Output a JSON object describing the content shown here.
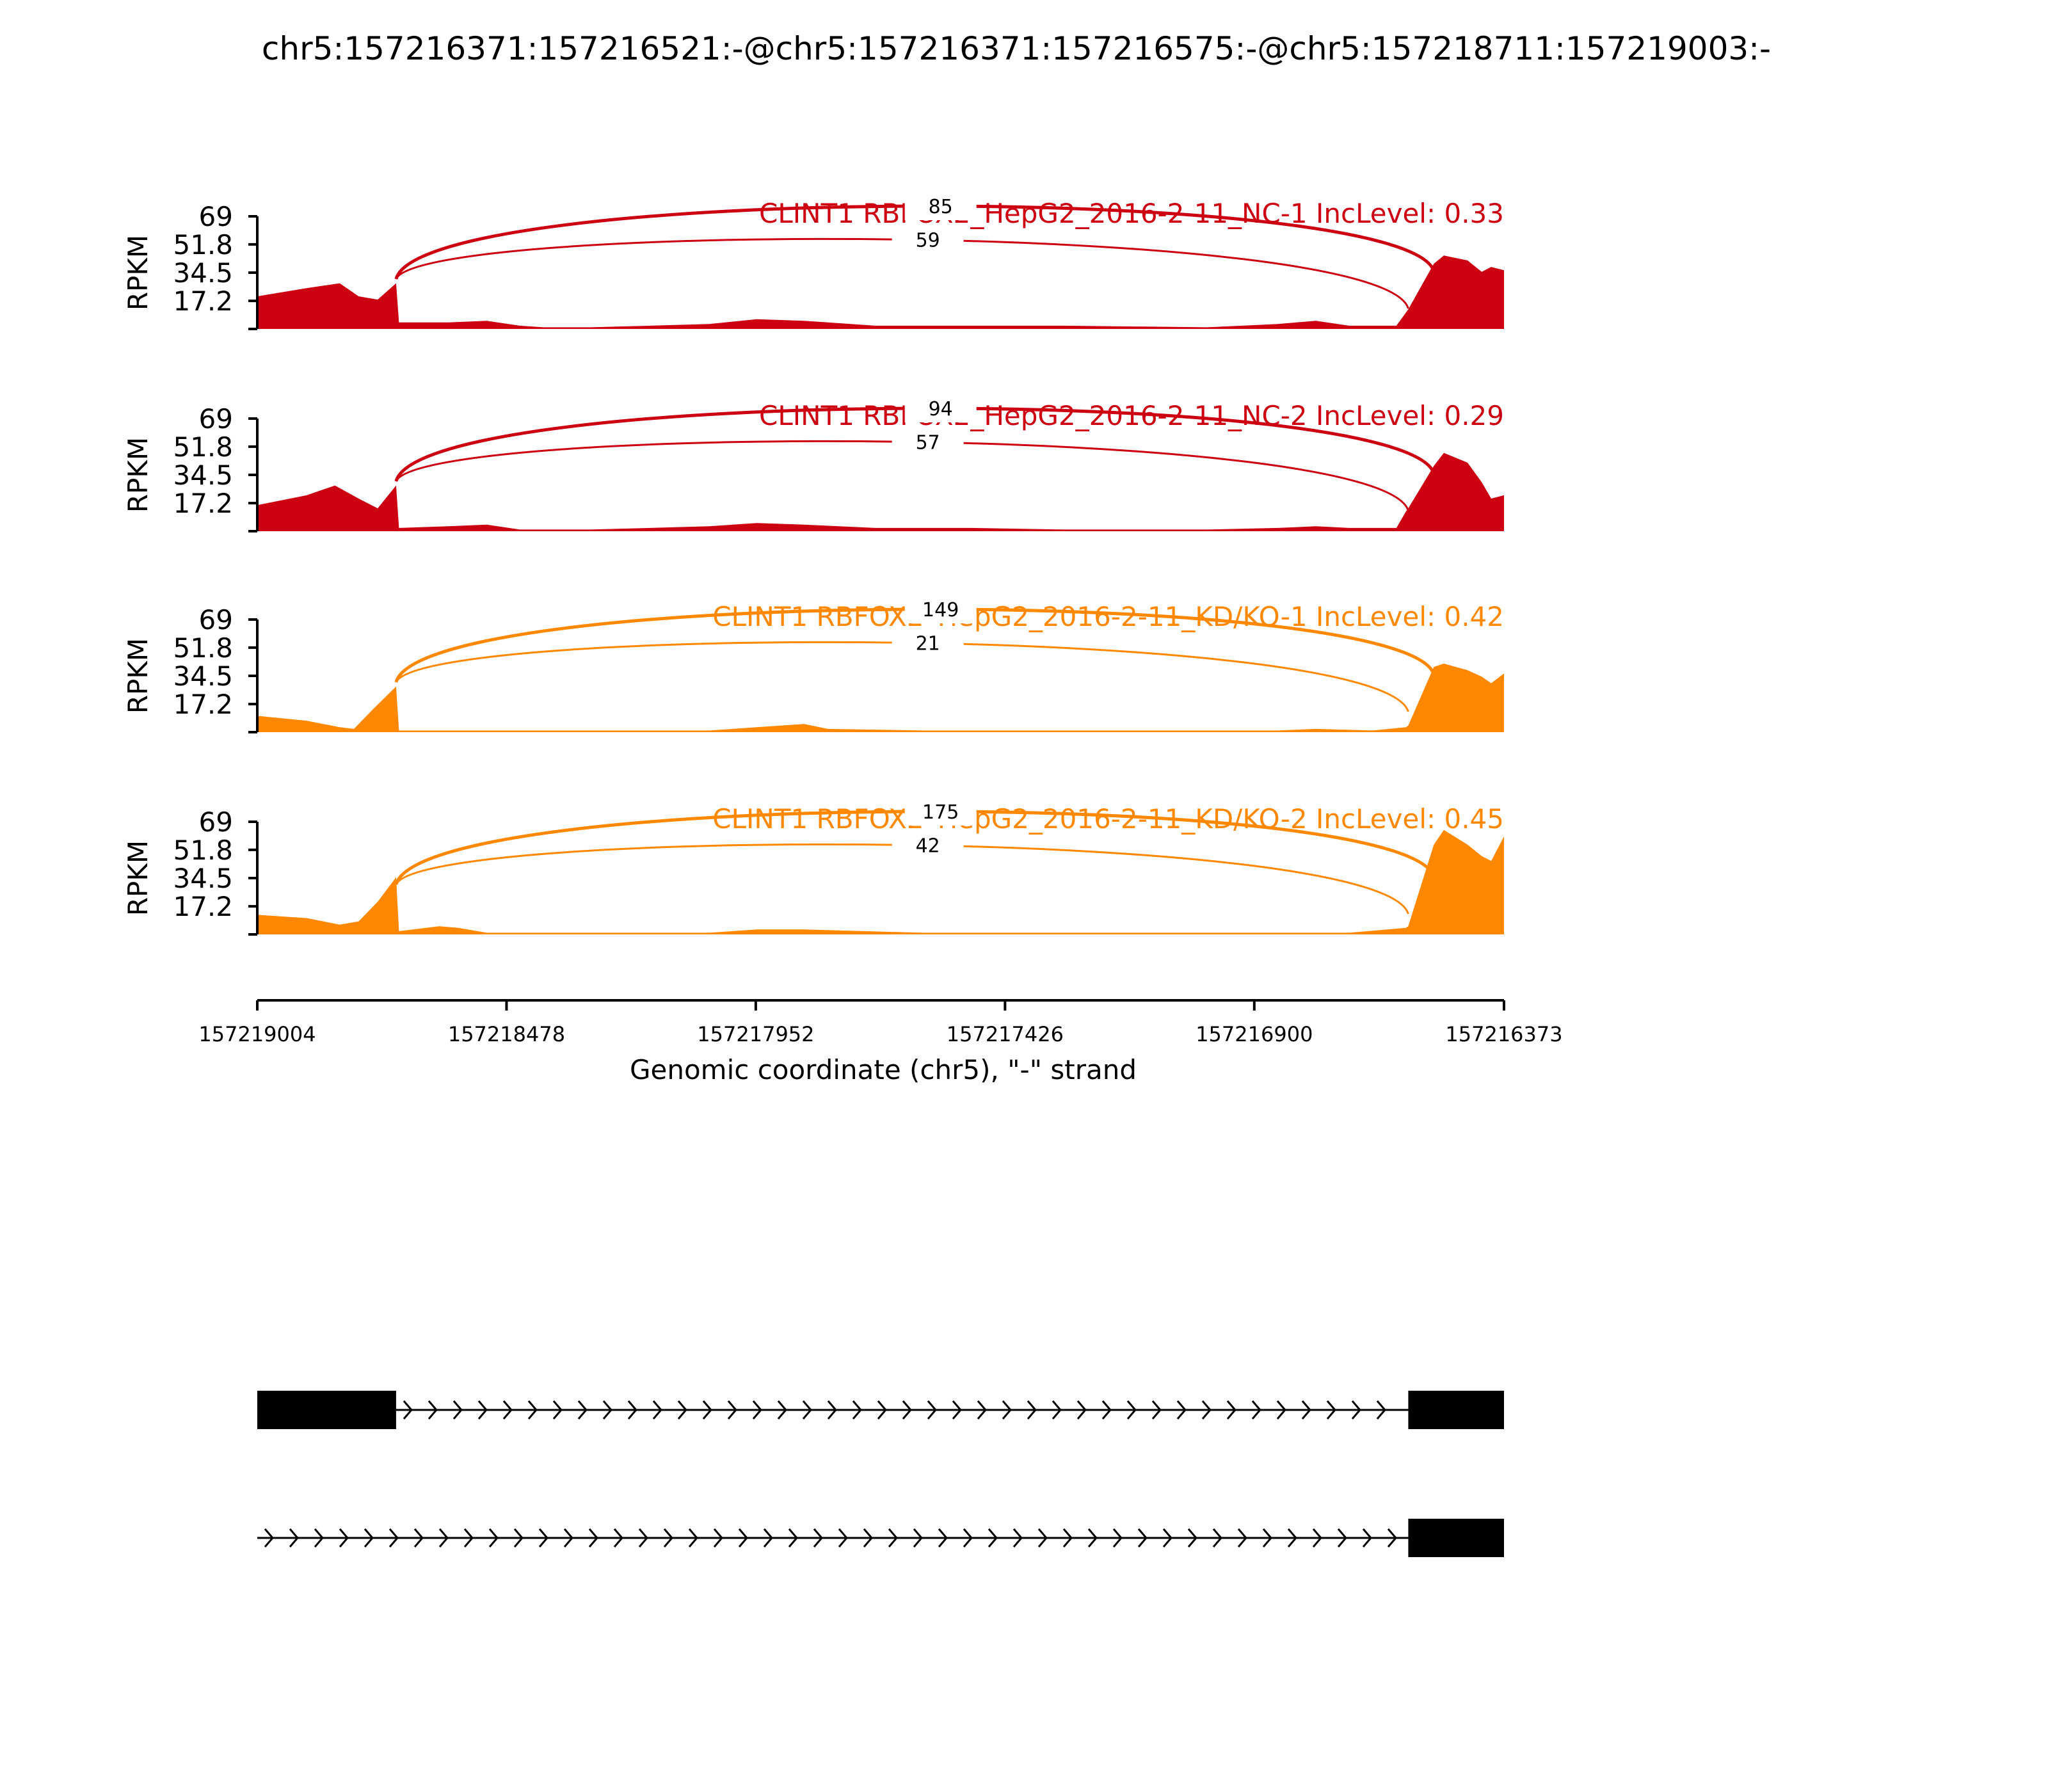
{
  "title": "chr5:157216371:157216521:-@chr5:157216371:157216575:-@chr5:157218711:157219003:-",
  "colors": {
    "nc": "#cc0011",
    "kd": "#ff8800",
    "axis": "#000000",
    "exon": "#000000"
  },
  "chart_data": {
    "type": "area",
    "subtype": "sashimi",
    "ylabel": "RPKM",
    "ylim": [
      0,
      69
    ],
    "yticks": [
      "17.2",
      "34.5",
      "51.8",
      "69"
    ],
    "xlabel": "Genomic coordinate (chr5), \"-\" strand",
    "xlim": [
      157219004,
      157216373
    ],
    "xticks": [
      "157219004",
      "157218478",
      "157217952",
      "157217426",
      "157216900",
      "157216373"
    ],
    "junction_ends": {
      "upstream_exon_end": 157218711,
      "middle_exon_start": 157216575,
      "downstream_exon_start": 157216521
    },
    "tracks": [
      {
        "label": "CLINT1 RBFOX2_HepG2_2016-2-11_NC-1 IncLevel: 0.33",
        "color_key": "nc",
        "junctions": [
          {
            "count": "85",
            "to": 157216521
          },
          {
            "count": "59",
            "to": 157216575
          }
        ],
        "coverage": [
          [
            157219004,
            20
          ],
          [
            157218900,
            25
          ],
          [
            157218830,
            28
          ],
          [
            157218790,
            20
          ],
          [
            157218750,
            18
          ],
          [
            157218711,
            28
          ],
          [
            157218705,
            4
          ],
          [
            157218600,
            4
          ],
          [
            157218520,
            5
          ],
          [
            157218450,
            2
          ],
          [
            157218400,
            1
          ],
          [
            157218300,
            1
          ],
          [
            157218050,
            3
          ],
          [
            157217950,
            6
          ],
          [
            157217850,
            5
          ],
          [
            157217700,
            2
          ],
          [
            157217500,
            2
          ],
          [
            157217300,
            2
          ],
          [
            157217000,
            1
          ],
          [
            157216850,
            3
          ],
          [
            157216770,
            5
          ],
          [
            157216700,
            2
          ],
          [
            157216600,
            2
          ],
          [
            157216580,
            10
          ],
          [
            157216575,
            12
          ],
          [
            157216521,
            40
          ],
          [
            157216500,
            45
          ],
          [
            157216450,
            42
          ],
          [
            157216420,
            35
          ],
          [
            157216400,
            38
          ],
          [
            157216373,
            36
          ]
        ]
      },
      {
        "label": "CLINT1 RBFOX2_HepG2_2016-2-11_NC-2 IncLevel: 0.29",
        "color_key": "nc",
        "junctions": [
          {
            "count": "94",
            "to": 157216521
          },
          {
            "count": "57",
            "to": 157216575
          }
        ],
        "coverage": [
          [
            157219004,
            16
          ],
          [
            157218900,
            22
          ],
          [
            157218840,
            28
          ],
          [
            157218790,
            20
          ],
          [
            157218750,
            14
          ],
          [
            157218711,
            28
          ],
          [
            157218705,
            2
          ],
          [
            157218600,
            3
          ],
          [
            157218520,
            4
          ],
          [
            157218450,
            1
          ],
          [
            157218300,
            1
          ],
          [
            157218050,
            3
          ],
          [
            157217950,
            5
          ],
          [
            157217850,
            4
          ],
          [
            157217700,
            2
          ],
          [
            157217500,
            2
          ],
          [
            157217300,
            1
          ],
          [
            157217000,
            1
          ],
          [
            157216850,
            2
          ],
          [
            157216770,
            3
          ],
          [
            157216700,
            2
          ],
          [
            157216600,
            2
          ],
          [
            157216580,
            12
          ],
          [
            157216575,
            14
          ],
          [
            157216521,
            40
          ],
          [
            157216500,
            48
          ],
          [
            157216450,
            42
          ],
          [
            157216420,
            30
          ],
          [
            157216400,
            20
          ],
          [
            157216373,
            22
          ]
        ]
      },
      {
        "label": "CLINT1 RBFOX2_HepG2_2016-2-11_KD/KO-1 IncLevel: 0.42",
        "color_key": "kd",
        "junctions": [
          {
            "count": "149",
            "to": 157216521
          },
          {
            "count": "21",
            "to": 157216575
          }
        ],
        "coverage": [
          [
            157219004,
            10
          ],
          [
            157218900,
            7
          ],
          [
            157218830,
            3
          ],
          [
            157218800,
            2
          ],
          [
            157218760,
            14
          ],
          [
            157218711,
            28
          ],
          [
            157218705,
            1
          ],
          [
            157218500,
            1
          ],
          [
            157218050,
            1
          ],
          [
            157217950,
            3
          ],
          [
            157217850,
            5
          ],
          [
            157217800,
            2
          ],
          [
            157217600,
            1
          ],
          [
            157217300,
            1
          ],
          [
            157216850,
            1
          ],
          [
            157216770,
            2
          ],
          [
            157216650,
            1
          ],
          [
            157216580,
            3
          ],
          [
            157216575,
            4
          ],
          [
            157216521,
            40
          ],
          [
            157216500,
            42
          ],
          [
            157216450,
            38
          ],
          [
            157216420,
            34
          ],
          [
            157216400,
            30
          ],
          [
            157216373,
            36
          ]
        ]
      },
      {
        "label": "CLINT1 RBFOX2_HepG2_2016-2-11_KD/KO-2 IncLevel: 0.45",
        "color_key": "kd",
        "junctions": [
          {
            "count": "175",
            "to": 157216521
          },
          {
            "count": "42",
            "to": 157216575
          }
        ],
        "coverage": [
          [
            157219004,
            12
          ],
          [
            157218900,
            10
          ],
          [
            157218830,
            6
          ],
          [
            157218790,
            8
          ],
          [
            157218750,
            20
          ],
          [
            157218711,
            35
          ],
          [
            157218705,
            2
          ],
          [
            157218620,
            5
          ],
          [
            157218580,
            4
          ],
          [
            157218520,
            1
          ],
          [
            157218050,
            1
          ],
          [
            157217950,
            3
          ],
          [
            157217850,
            3
          ],
          [
            157217600,
            1
          ],
          [
            157217300,
            1
          ],
          [
            157216850,
            1
          ],
          [
            157216700,
            1
          ],
          [
            157216580,
            4
          ],
          [
            157216575,
            5
          ],
          [
            157216521,
            55
          ],
          [
            157216500,
            64
          ],
          [
            157216450,
            55
          ],
          [
            157216420,
            48
          ],
          [
            157216400,
            45
          ],
          [
            157216373,
            60
          ]
        ]
      }
    ],
    "transcripts": [
      {
        "exons": [
          [
            157219004,
            157218711
          ],
          [
            157216575,
            157216373
          ]
        ]
      },
      {
        "exons": [
          [
            157216575,
            157216373
          ]
        ],
        "intron_from": 157219004
      }
    ]
  }
}
